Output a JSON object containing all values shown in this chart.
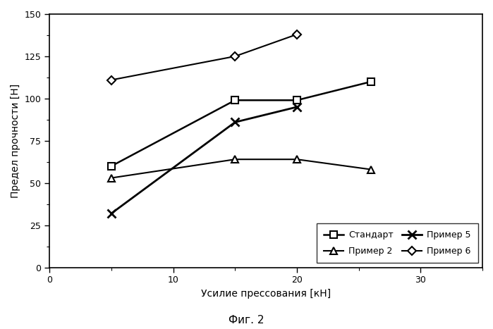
{
  "title": "Фиг. 2",
  "xlabel": "Усилие прессования [кН]",
  "ylabel": "Предел прочности [Н]",
  "xlim": [
    0,
    35
  ],
  "ylim": [
    0,
    150
  ],
  "xticks": [
    0,
    10,
    20,
    30
  ],
  "yticks": [
    0,
    25,
    50,
    75,
    100,
    125,
    150
  ],
  "series": [
    {
      "label": "Стандарт",
      "x": [
        5,
        15,
        20,
        26
      ],
      "y": [
        60,
        99,
        99,
        110
      ],
      "marker": "s",
      "markersize": 7,
      "linewidth": 1.8,
      "markerfacecolor": "white",
      "markeredgewidth": 1.5
    },
    {
      "label": "Пример 2",
      "x": [
        5,
        15,
        20,
        26
      ],
      "y": [
        53,
        64,
        64,
        58
      ],
      "marker": "^",
      "markersize": 7,
      "linewidth": 1.5,
      "markerfacecolor": "white",
      "markeredgewidth": 1.5
    },
    {
      "label": "Пример 5",
      "x": [
        5,
        15,
        20
      ],
      "y": [
        32,
        86,
        95
      ],
      "marker": "x",
      "markersize": 9,
      "linewidth": 2.0,
      "markerfacecolor": "black",
      "markeredgewidth": 2.0
    },
    {
      "label": "Пример 6",
      "x": [
        5,
        15,
        20
      ],
      "y": [
        111,
        125,
        138
      ],
      "marker": "D",
      "markersize": 6,
      "linewidth": 1.5,
      "markerfacecolor": "white",
      "markeredgewidth": 1.5
    }
  ],
  "legend_order": [
    0,
    1,
    2,
    3
  ],
  "background_color": "#ffffff",
  "plot_bg_color": "#ffffff"
}
